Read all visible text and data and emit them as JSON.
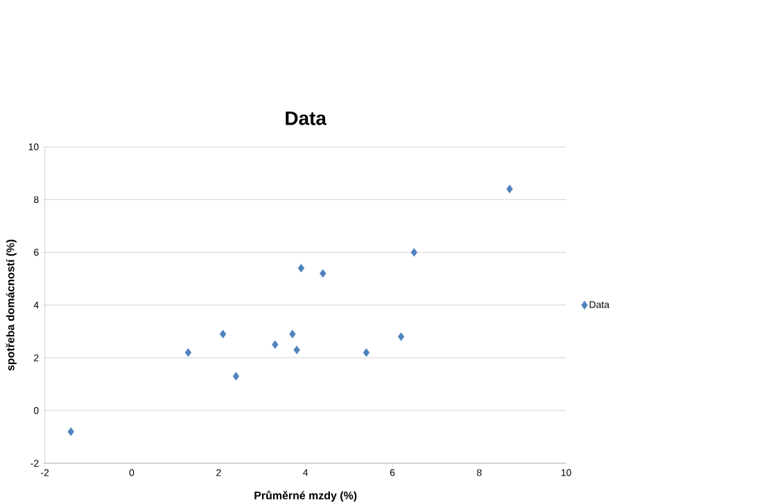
{
  "chart_data": {
    "type": "scatter",
    "title": "Data",
    "xlabel": "Průměrné mzdy (%)",
    "ylabel": "spotřeba domácností (%)",
    "series": [
      {
        "name": "Data",
        "color": "#4f81bd",
        "x": [
          -1.4,
          1.3,
          2.1,
          2.4,
          3.3,
          3.7,
          3.8,
          3.9,
          4.4,
          5.4,
          6.2,
          6.5,
          8.7
        ],
        "values": [
          -0.8,
          2.2,
          2.9,
          1.3,
          2.5,
          2.9,
          2.3,
          5.4,
          5.2,
          2.2,
          2.8,
          6.0,
          8.4
        ]
      }
    ],
    "xlim": [
      -2,
      10
    ],
    "ylim": [
      -2,
      10
    ],
    "xticks": [
      -2,
      0,
      2,
      4,
      6,
      8,
      10
    ],
    "yticks": [
      -2,
      0,
      2,
      4,
      6,
      8,
      10
    ],
    "grid": "y",
    "legend": "right",
    "marker": "diamond"
  }
}
